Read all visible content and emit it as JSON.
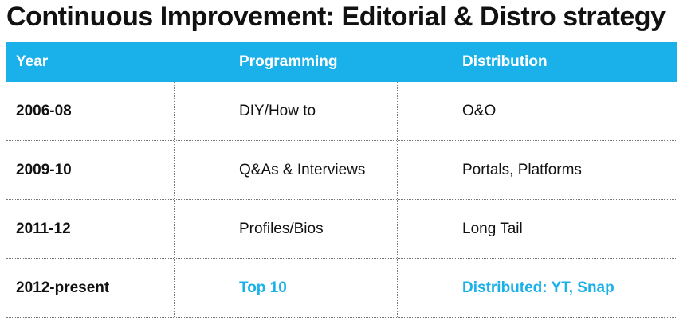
{
  "header": {
    "title": "Continuous Improvement: Editorial & Distro strategy"
  },
  "table": {
    "columns": [
      "Year",
      "Programming",
      "Distribution"
    ],
    "rows": [
      [
        "2006-08",
        "DIY/How to",
        "O&O"
      ],
      [
        "2009-10",
        "Q&As & Interviews",
        "Portals, Platforms"
      ],
      [
        "2011-12",
        "Profiles/Bios",
        "Long Tail"
      ],
      [
        "2012-present",
        "Top 10",
        "Distributed: YT, Snap"
      ]
    ]
  }
}
